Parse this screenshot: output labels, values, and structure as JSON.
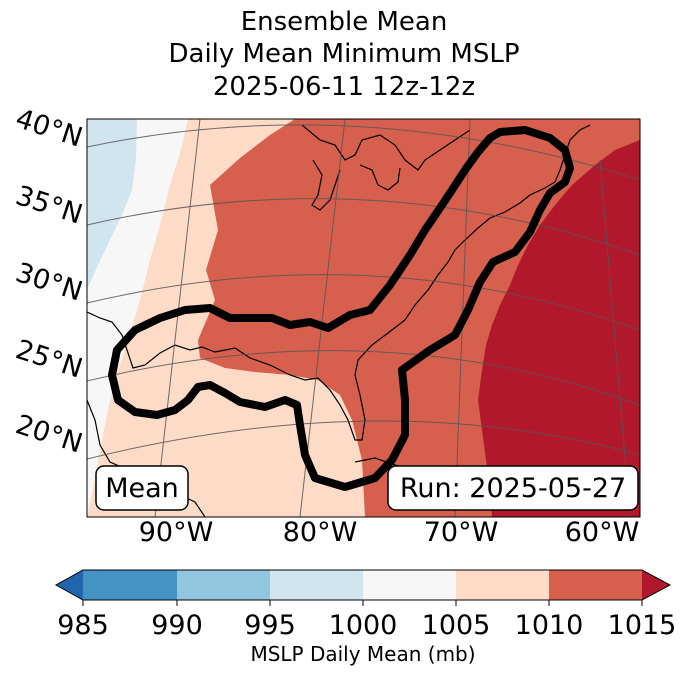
{
  "title": {
    "line1": "Ensemble Mean",
    "line2": "Daily Mean Minimum MSLP",
    "line3": "2025-06-11 12z-12z"
  },
  "map": {
    "lat_labels": [
      "40°N",
      "35°N",
      "30°N",
      "25°N",
      "20°N"
    ],
    "lon_labels": [
      "90°W",
      "80°W",
      "70°W",
      "60°W"
    ],
    "left_box": "Mean",
    "right_box": "Run: 2025-05-27",
    "fill_colors": {
      "995-1000": "#d1e5f0",
      "1000-1005": "#f7f7f7",
      "1005-1010": "#fddbc7",
      "1010-1015": "#d6604d",
      "1015+": "#b2182b"
    }
  },
  "colorbar": {
    "label": "MSLP Daily Mean (mb)",
    "ticks": [
      "985",
      "990",
      "995",
      "1000",
      "1005",
      "1010",
      "1015"
    ],
    "colors": [
      "#2166ac",
      "#4393c3",
      "#92c5de",
      "#d1e5f0",
      "#f7f7f7",
      "#fddbc7",
      "#d6604d",
      "#b2182b"
    ]
  }
}
